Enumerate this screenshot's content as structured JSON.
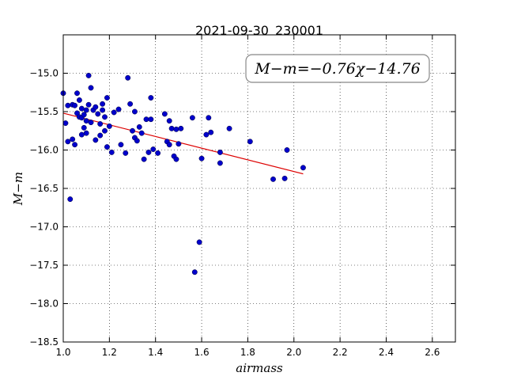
{
  "chart_data": {
    "type": "scatter",
    "title": "2021-09-30_230001",
    "xlabel": "airmass",
    "ylabel": "M−m",
    "xlim": [
      1.0,
      2.7
    ],
    "ylim": [
      -18.5,
      -14.5
    ],
    "y_inverted": true,
    "grid": true,
    "xticks": [
      1.0,
      1.2,
      1.4,
      1.6,
      1.8,
      2.0,
      2.2,
      2.4,
      2.6
    ],
    "xtick_labels": [
      "1.0",
      "1.2",
      "1.4",
      "1.6",
      "1.8",
      "2.0",
      "2.2",
      "2.4",
      "2.6"
    ],
    "yticks": [
      -15.0,
      -15.5,
      -16.0,
      -16.5,
      -17.0,
      -17.5,
      -18.0,
      -18.5
    ],
    "ytick_labels": [
      "−15.0",
      "−15.5",
      "−16.0",
      "−16.5",
      "−17.0",
      "−17.5",
      "−18.0",
      "−18.5"
    ],
    "point_color": "#0000cc",
    "fit_color": "#dd0000",
    "annotation": "M−m=−0.76χ−14.76",
    "fit": {
      "slope": -0.76,
      "intercept": -14.76,
      "x_range": [
        1.0,
        2.04
      ]
    },
    "points": [
      [
        1.0,
        -15.26
      ],
      [
        1.01,
        -15.65
      ],
      [
        1.02,
        -15.42
      ],
      [
        1.02,
        -15.89
      ],
      [
        1.03,
        -16.64
      ],
      [
        1.04,
        -15.86
      ],
      [
        1.04,
        -15.41
      ],
      [
        1.05,
        -15.93
      ],
      [
        1.05,
        -15.42
      ],
      [
        1.06,
        -15.52
      ],
      [
        1.06,
        -15.26
      ],
      [
        1.07,
        -15.35
      ],
      [
        1.07,
        -15.57
      ],
      [
        1.08,
        -15.46
      ],
      [
        1.08,
        -15.8
      ],
      [
        1.08,
        -15.58
      ],
      [
        1.09,
        -15.54
      ],
      [
        1.09,
        -15.71
      ],
      [
        1.1,
        -15.48
      ],
      [
        1.1,
        -15.62
      ],
      [
        1.1,
        -15.78
      ],
      [
        1.11,
        -15.03
      ],
      [
        1.11,
        -15.41
      ],
      [
        1.12,
        -15.19
      ],
      [
        1.12,
        -15.64
      ],
      [
        1.13,
        -15.48
      ],
      [
        1.14,
        -15.87
      ],
      [
        1.14,
        -15.44
      ],
      [
        1.15,
        -15.53
      ],
      [
        1.16,
        -15.81
      ],
      [
        1.16,
        -15.66
      ],
      [
        1.17,
        -15.4
      ],
      [
        1.17,
        -15.48
      ],
      [
        1.18,
        -15.57
      ],
      [
        1.18,
        -15.75
      ],
      [
        1.19,
        -15.32
      ],
      [
        1.19,
        -15.96
      ],
      [
        1.2,
        -15.69
      ],
      [
        1.21,
        -16.03
      ],
      [
        1.22,
        -15.51
      ],
      [
        1.24,
        -15.47
      ],
      [
        1.25,
        -15.93
      ],
      [
        1.27,
        -16.04
      ],
      [
        1.28,
        -15.06
      ],
      [
        1.29,
        -15.4
      ],
      [
        1.3,
        -15.75
      ],
      [
        1.31,
        -15.5
      ],
      [
        1.31,
        -15.84
      ],
      [
        1.32,
        -15.88
      ],
      [
        1.33,
        -15.7
      ],
      [
        1.34,
        -15.78
      ],
      [
        1.35,
        -16.12
      ],
      [
        1.36,
        -15.6
      ],
      [
        1.37,
        -16.03
      ],
      [
        1.38,
        -15.6
      ],
      [
        1.38,
        -15.32
      ],
      [
        1.39,
        -15.99
      ],
      [
        1.41,
        -16.04
      ],
      [
        1.44,
        -15.53
      ],
      [
        1.45,
        -15.89
      ],
      [
        1.46,
        -15.62
      ],
      [
        1.46,
        -15.93
      ],
      [
        1.47,
        -15.72
      ],
      [
        1.48,
        -16.08
      ],
      [
        1.49,
        -16.12
      ],
      [
        1.49,
        -15.73
      ],
      [
        1.5,
        -15.92
      ],
      [
        1.51,
        -15.72
      ],
      [
        1.56,
        -15.58
      ],
      [
        1.57,
        -17.59
      ],
      [
        1.59,
        -17.2
      ],
      [
        1.6,
        -16.11
      ],
      [
        1.62,
        -15.8
      ],
      [
        1.63,
        -15.58
      ],
      [
        1.64,
        -15.77
      ],
      [
        1.68,
        -16.03
      ],
      [
        1.68,
        -16.17
      ],
      [
        1.72,
        -15.72
      ],
      [
        1.81,
        -15.89
      ],
      [
        1.91,
        -16.38
      ],
      [
        1.96,
        -16.37
      ],
      [
        1.97,
        -16.0
      ],
      [
        2.04,
        -16.23
      ]
    ]
  }
}
